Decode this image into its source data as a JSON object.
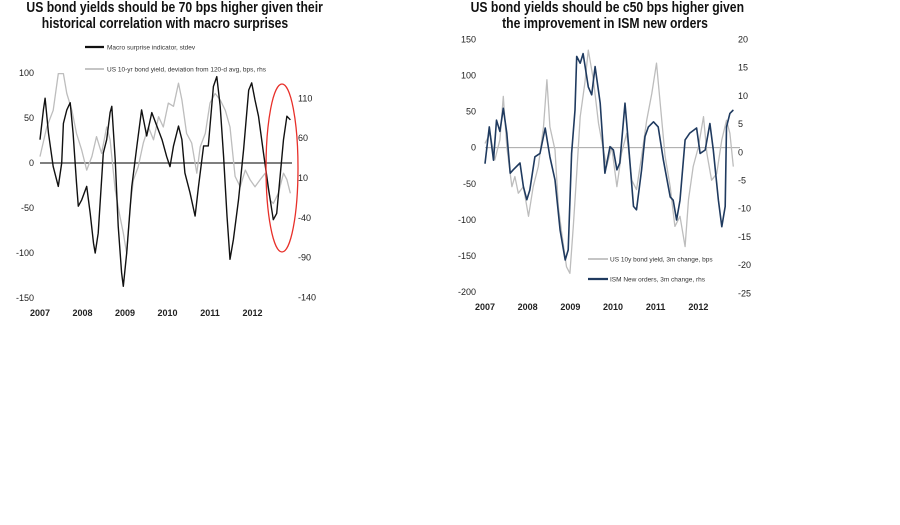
{
  "chart_data": [
    {
      "type": "line",
      "title_line1": "US bond yields should be 70 bps higher given their",
      "title_line2": "historical correlation with macro surprises",
      "x_ticks": [
        "2007",
        "2008",
        "2009",
        "2010",
        "2011",
        "2012"
      ],
      "y_left_ticks": [
        100,
        50,
        0,
        -50,
        -100,
        -150
      ],
      "y_right_ticks": [
        110,
        60,
        10,
        -40,
        -90,
        -140
      ],
      "ylim_left": [
        -150,
        100
      ],
      "ylim_right": [
        -140,
        110
      ],
      "legend_placement": "top",
      "annotation": "red ellipse around 2012 H2 divergence",
      "colors": {
        "macro": "#111111",
        "yield": "#bdbdbd",
        "ellipse": "#e8302a"
      },
      "series": [
        {
          "name": "Macro surprise indicator, stdev",
          "axis": "left",
          "points": [
            [
              2007.0,
              26
            ],
            [
              2007.08,
              59
            ],
            [
              2007.12,
              72
            ],
            [
              2007.2,
              33
            ],
            [
              2007.31,
              -4
            ],
            [
              2007.43,
              -26
            ],
            [
              2007.51,
              0
            ],
            [
              2007.55,
              44
            ],
            [
              2007.63,
              59
            ],
            [
              2007.71,
              67
            ],
            [
              2007.78,
              33
            ],
            [
              2007.86,
              -22
            ],
            [
              2007.9,
              -48
            ],
            [
              2007.98,
              -41
            ],
            [
              2008.1,
              -26
            ],
            [
              2008.18,
              -56
            ],
            [
              2008.26,
              -89
            ],
            [
              2008.3,
              -100
            ],
            [
              2008.37,
              -78
            ],
            [
              2008.49,
              11
            ],
            [
              2008.57,
              26
            ],
            [
              2008.65,
              56
            ],
            [
              2008.69,
              63
            ],
            [
              2008.77,
              4
            ],
            [
              2008.84,
              -70
            ],
            [
              2008.92,
              -122
            ],
            [
              2008.96,
              -137
            ],
            [
              2009.04,
              -100
            ],
            [
              2009.16,
              -26
            ],
            [
              2009.28,
              19
            ],
            [
              2009.39,
              59
            ],
            [
              2009.51,
              30
            ],
            [
              2009.63,
              56
            ],
            [
              2009.75,
              41
            ],
            [
              2009.87,
              26
            ],
            [
              2009.98,
              7
            ],
            [
              2010.06,
              -4
            ],
            [
              2010.14,
              19
            ],
            [
              2010.26,
              41
            ],
            [
              2010.34,
              26
            ],
            [
              2010.41,
              -11
            ],
            [
              2010.53,
              -33
            ],
            [
              2010.65,
              -59
            ],
            [
              2010.73,
              -26
            ],
            [
              2010.85,
              19
            ],
            [
              2010.96,
              19
            ],
            [
              2011.08,
              85
            ],
            [
              2011.16,
              96
            ],
            [
              2011.24,
              63
            ],
            [
              2011.32,
              7
            ],
            [
              2011.4,
              -59
            ],
            [
              2011.47,
              -107
            ],
            [
              2011.55,
              -85
            ],
            [
              2011.67,
              -41
            ],
            [
              2011.79,
              15
            ],
            [
              2011.91,
              81
            ],
            [
              2011.98,
              89
            ],
            [
              2012.06,
              70
            ],
            [
              2012.14,
              52
            ],
            [
              2012.26,
              11
            ],
            [
              2012.38,
              -30
            ],
            [
              2012.49,
              -63
            ],
            [
              2012.57,
              -56
            ],
            [
              2012.65,
              -15
            ],
            [
              2012.73,
              26
            ],
            [
              2012.81,
              52
            ],
            [
              2012.89,
              48
            ]
          ]
        },
        {
          "name": "US 10-yr bond yield, deviation from 120-d avg, bps, rhs",
          "axis": "right",
          "points": [
            [
              2007.0,
              37
            ],
            [
              2007.16,
              74
            ],
            [
              2007.31,
              95
            ],
            [
              2007.43,
              141
            ],
            [
              2007.55,
              141
            ],
            [
              2007.63,
              116
            ],
            [
              2007.75,
              95
            ],
            [
              2007.86,
              66
            ],
            [
              2007.98,
              45
            ],
            [
              2008.1,
              20
            ],
            [
              2008.22,
              37
            ],
            [
              2008.33,
              62
            ],
            [
              2008.45,
              41
            ],
            [
              2008.57,
              74
            ],
            [
              2008.65,
              58
            ],
            [
              2008.77,
              -5
            ],
            [
              2008.88,
              -38
            ],
            [
              2008.96,
              -59
            ],
            [
              2009.04,
              -85
            ],
            [
              2009.12,
              -26
            ],
            [
              2009.2,
              8
            ],
            [
              2009.31,
              24
            ],
            [
              2009.43,
              54
            ],
            [
              2009.55,
              74
            ],
            [
              2009.67,
              58
            ],
            [
              2009.79,
              87
            ],
            [
              2009.9,
              74
            ],
            [
              2010.02,
              104
            ],
            [
              2010.14,
              100
            ],
            [
              2010.26,
              129
            ],
            [
              2010.34,
              108
            ],
            [
              2010.45,
              66
            ],
            [
              2010.57,
              54
            ],
            [
              2010.69,
              16
            ],
            [
              2010.77,
              49
            ],
            [
              2010.89,
              66
            ],
            [
              2011.0,
              104
            ],
            [
              2011.12,
              116
            ],
            [
              2011.24,
              108
            ],
            [
              2011.36,
              95
            ],
            [
              2011.47,
              74
            ],
            [
              2011.59,
              12
            ],
            [
              2011.71,
              -1
            ],
            [
              2011.83,
              20
            ],
            [
              2011.94,
              8
            ],
            [
              2012.06,
              -1
            ],
            [
              2012.18,
              8
            ],
            [
              2012.3,
              16
            ],
            [
              2012.42,
              -18
            ],
            [
              2012.49,
              -22
            ],
            [
              2012.61,
              -9
            ],
            [
              2012.73,
              16
            ],
            [
              2012.81,
              8
            ],
            [
              2012.89,
              -9
            ]
          ]
        }
      ]
    },
    {
      "type": "line",
      "title_line1": "US bond yields should be c50 bps higher given",
      "title_line2": "the improvement in ISM new orders",
      "x_ticks": [
        "2007",
        "2008",
        "2009",
        "2010",
        "2011",
        "2012"
      ],
      "y_left_ticks": [
        150,
        100,
        50,
        0,
        -50,
        -100,
        -150,
        -200
      ],
      "y_right_ticks": [
        20,
        15,
        10,
        5,
        0,
        -5,
        -10,
        -15,
        -20,
        -25
      ],
      "ylim_left": [
        -200,
        150
      ],
      "ylim_right": [
        -25,
        20
      ],
      "legend_placement": "bottom-right",
      "colors": {
        "yield": "#bdbdbd",
        "ism": "#1f3a5f"
      },
      "series": [
        {
          "name": "US 10y bond yield, 3m change, bps",
          "axis": "left",
          "points": [
            [
              2007.0,
              6
            ],
            [
              2007.12,
              20
            ],
            [
              2007.23,
              -17
            ],
            [
              2007.35,
              11
            ],
            [
              2007.43,
              71
            ],
            [
              2007.51,
              1
            ],
            [
              2007.63,
              -54
            ],
            [
              2007.7,
              -40
            ],
            [
              2007.78,
              -63
            ],
            [
              2007.9,
              -54
            ],
            [
              2008.02,
              -95
            ],
            [
              2008.13,
              -54
            ],
            [
              2008.25,
              -26
            ],
            [
              2008.37,
              29
            ],
            [
              2008.45,
              94
            ],
            [
              2008.52,
              29
            ],
            [
              2008.64,
              -3
            ],
            [
              2008.72,
              -82
            ],
            [
              2008.8,
              -119
            ],
            [
              2008.91,
              -165
            ],
            [
              2008.99,
              -174
            ],
            [
              2009.07,
              -109
            ],
            [
              2009.15,
              -36
            ],
            [
              2009.23,
              43
            ],
            [
              2009.34,
              89
            ],
            [
              2009.42,
              135
            ],
            [
              2009.54,
              94
            ],
            [
              2009.66,
              34
            ],
            [
              2009.73,
              11
            ],
            [
              2009.85,
              -26
            ],
            [
              2009.97,
              1
            ],
            [
              2010.09,
              -54
            ],
            [
              2010.2,
              -8
            ],
            [
              2010.32,
              20
            ],
            [
              2010.44,
              -45
            ],
            [
              2010.55,
              -58
            ],
            [
              2010.67,
              -12
            ],
            [
              2010.79,
              38
            ],
            [
              2010.91,
              75
            ],
            [
              2011.02,
              117
            ],
            [
              2011.1,
              66
            ],
            [
              2011.22,
              -12
            ],
            [
              2011.34,
              -54
            ],
            [
              2011.45,
              -109
            ],
            [
              2011.57,
              -95
            ],
            [
              2011.69,
              -137
            ],
            [
              2011.77,
              -72
            ],
            [
              2011.88,
              -26
            ],
            [
              2012.0,
              1
            ],
            [
              2012.12,
              43
            ],
            [
              2012.2,
              -8
            ],
            [
              2012.31,
              -45
            ],
            [
              2012.43,
              -36
            ],
            [
              2012.55,
              11
            ],
            [
              2012.66,
              38
            ],
            [
              2012.74,
              20
            ],
            [
              2012.82,
              -26
            ]
          ]
        },
        {
          "name": "ISM New orders, 3m change, rhs",
          "axis": "right",
          "points": [
            [
              2007.0,
              -2
            ],
            [
              2007.1,
              4.5
            ],
            [
              2007.2,
              -1.4
            ],
            [
              2007.27,
              5.7
            ],
            [
              2007.35,
              3.7
            ],
            [
              2007.43,
              7.8
            ],
            [
              2007.51,
              3.4
            ],
            [
              2007.59,
              -3.7
            ],
            [
              2007.66,
              -3.1
            ],
            [
              2007.82,
              -1.9
            ],
            [
              2007.9,
              -6.1
            ],
            [
              2007.98,
              -8.4
            ],
            [
              2008.05,
              -6.7
            ],
            [
              2008.17,
              -0.8
            ],
            [
              2008.29,
              -0.2
            ],
            [
              2008.41,
              4.3
            ],
            [
              2008.52,
              -0.8
            ],
            [
              2008.64,
              -4.9
            ],
            [
              2008.76,
              -13.8
            ],
            [
              2008.88,
              -19.1
            ],
            [
              2008.95,
              -17.3
            ],
            [
              2009.03,
              -0.2
            ],
            [
              2009.11,
              7.5
            ],
            [
              2009.15,
              17
            ],
            [
              2009.23,
              15.8
            ],
            [
              2009.3,
              17.5
            ],
            [
              2009.42,
              11.6
            ],
            [
              2009.5,
              10.2
            ],
            [
              2009.58,
              15.2
            ],
            [
              2009.7,
              8.7
            ],
            [
              2009.81,
              -3.7
            ],
            [
              2009.93,
              1
            ],
            [
              2010.01,
              0.4
            ],
            [
              2010.09,
              -3.1
            ],
            [
              2010.16,
              -1.9
            ],
            [
              2010.28,
              8.7
            ],
            [
              2010.36,
              1.6
            ],
            [
              2010.48,
              -9.6
            ],
            [
              2010.55,
              -10.2
            ],
            [
              2010.67,
              -3.1
            ],
            [
              2010.75,
              2.8
            ],
            [
              2010.83,
              4.5
            ],
            [
              2010.95,
              5.4
            ],
            [
              2011.06,
              4.5
            ],
            [
              2011.18,
              -1.4
            ],
            [
              2011.34,
              -7.9
            ],
            [
              2011.41,
              -8.5
            ],
            [
              2011.49,
              -12
            ],
            [
              2011.57,
              -8.5
            ],
            [
              2011.69,
              2.2
            ],
            [
              2011.8,
              3.4
            ],
            [
              2011.96,
              4.3
            ],
            [
              2012.04,
              -0.2
            ],
            [
              2012.16,
              0.4
            ],
            [
              2012.27,
              5.1
            ],
            [
              2012.35,
              0.4
            ],
            [
              2012.47,
              -8.5
            ],
            [
              2012.55,
              -13.2
            ],
            [
              2012.63,
              -9.6
            ],
            [
              2012.66,
              4.5
            ],
            [
              2012.74,
              6.9
            ],
            [
              2012.82,
              7.5
            ]
          ]
        }
      ]
    }
  ]
}
